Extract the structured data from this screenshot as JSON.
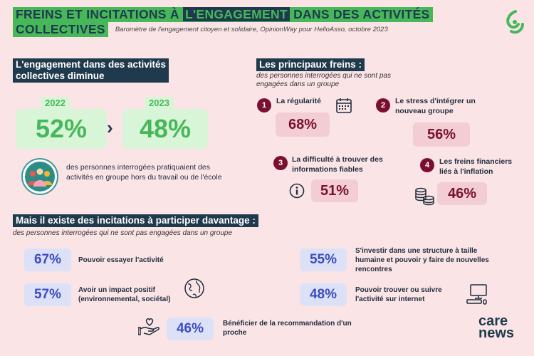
{
  "header": {
    "title_part1": "FREINS ET INCITATIONS À ",
    "title_highlight": "L'ENGAGEMENT",
    "title_part2": " DANS DES ACTIVITÉS",
    "title_line2": "COLLECTIVES",
    "subtitle": "Baromètre de l'engagement citoyen et solidaire, OpinionWay pour HelloAsso, octobre 2023"
  },
  "engagement": {
    "heading_line1": "L'engagement dans des activités",
    "heading_line2": "collectives diminue",
    "year1": "2022",
    "value1": "52%",
    "year2": "2023",
    "value2": "48%",
    "arrow": "›",
    "description": "des personnes interrogées pratiquaient des activités en groupe hors du travail ou de l'école"
  },
  "freins": {
    "heading": "Les principaux freins :",
    "subheading": "des personnes interrogées qui ne sont pas engagées dans un groupe",
    "items": [
      {
        "num": "1",
        "label": "La régularité",
        "pct": "68%",
        "icon": "calendar-icon"
      },
      {
        "num": "2",
        "label": "Le stress d'intégrer un nouveau groupe",
        "pct": "56%",
        "icon": ""
      },
      {
        "num": "3",
        "label": "La difficulté à trouver des informations fiables",
        "pct": "51%",
        "icon": "info-icon"
      },
      {
        "num": "4",
        "label": "Les freins financiers liés à l'inflation",
        "pct": "46%",
        "icon": "coins-icon"
      }
    ]
  },
  "incitations": {
    "heading": "Mais il existe des incitations à participer davantage :",
    "subheading": "des personnes interrogées qui ne sont pas engagées dans un groupe",
    "items": [
      {
        "pct": "67%",
        "label": "Pouvoir essayer l'activité"
      },
      {
        "pct": "57%",
        "label": "Avoir un impact positif (environnemental, sociétal)",
        "icon": "globe-icon"
      },
      {
        "pct": "46%",
        "label": "Bénéficier de la recommandation d'un proche",
        "icon": "hand-heart-icon"
      },
      {
        "pct": "55%",
        "label": "S'investir dans une structure à taille humaine et pouvoir y faire de nouvelles rencontres"
      },
      {
        "pct": "48%",
        "label": "Pouvoir trouver ou suivre l'activité sur internet",
        "icon": "computer-icon"
      }
    ]
  },
  "brand": {
    "line1": "care",
    "line2": "news",
    "colors": {
      "green": "#47b85a",
      "navy": "#1f3a4d",
      "burgundy": "#7a1030",
      "blue": "#3b4cc0",
      "background": "#fbe4e6"
    }
  }
}
